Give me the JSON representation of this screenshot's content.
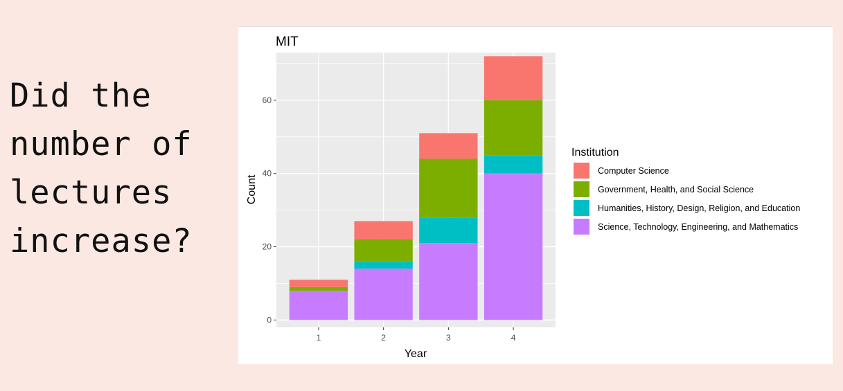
{
  "question": {
    "lines": [
      "Did the",
      "number of",
      "lectures",
      "increase?"
    ]
  },
  "colors": {
    "page_background": "#fce8e2",
    "panel_background": "#ebebeb",
    "gridline": "#ffffff"
  },
  "chart_data": {
    "type": "bar",
    "stacked": true,
    "title": "MIT",
    "xlabel": "Year",
    "ylabel": "Count",
    "categories": [
      "1",
      "2",
      "3",
      "4"
    ],
    "ylim": [
      -2,
      73
    ],
    "yticks": [
      0,
      20,
      40,
      60
    ],
    "grid": true,
    "legend": {
      "title": "Institution",
      "position": "right"
    },
    "series": [
      {
        "name": "Science, Technology, Engineering, and Mathematics",
        "color": "#c77cff",
        "values": [
          8,
          14,
          21,
          40
        ]
      },
      {
        "name": "Humanities, History, Design, Religion, and Education",
        "color": "#00bfc4",
        "values": [
          0,
          2,
          7,
          5
        ]
      },
      {
        "name": "Government, Health, and Social Science",
        "color": "#7cae00",
        "values": [
          1,
          6,
          16,
          15
        ]
      },
      {
        "name": "Computer Science",
        "color": "#f8766d",
        "values": [
          2,
          5,
          7,
          12
        ]
      }
    ],
    "legend_order": [
      3,
      2,
      1,
      0
    ]
  }
}
